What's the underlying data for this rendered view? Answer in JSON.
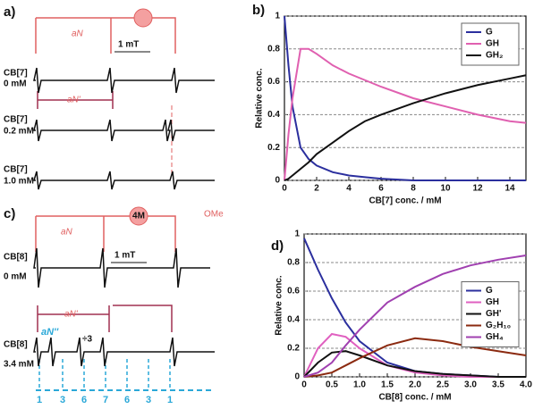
{
  "chart_data": [
    {
      "type": "line",
      "panel": "b)",
      "xlabel": "CB[7] conc. / mM",
      "ylabel": "Relative conc.",
      "x": [
        0,
        0.25,
        0.5,
        1,
        1.5,
        2,
        3,
        4,
        5,
        6,
        8,
        10,
        12,
        14,
        15
      ],
      "series": [
        {
          "name": "G",
          "color": "#2b2f9e",
          "values": [
            1,
            0.7,
            0.45,
            0.2,
            0.13,
            0.09,
            0.05,
            0.03,
            0.02,
            0.01,
            0,
            0,
            0,
            0,
            0
          ]
        },
        {
          "name": "GH",
          "color": "#e060b0",
          "values": [
            0,
            0.28,
            0.5,
            0.8,
            0.8,
            0.77,
            0.7,
            0.65,
            0.61,
            0.57,
            0.5,
            0.45,
            0.4,
            0.36,
            0.35
          ]
        },
        {
          "name": "GH₂",
          "color": "#111111",
          "values": [
            0,
            0.01,
            0.03,
            0.07,
            0.11,
            0.16,
            0.23,
            0.3,
            0.36,
            0.4,
            0.47,
            0.53,
            0.58,
            0.62,
            0.64
          ]
        }
      ],
      "xlim": [
        0,
        15
      ],
      "xticks": [
        0,
        2,
        4,
        6,
        8,
        10,
        12,
        14
      ],
      "ylim": [
        0,
        1
      ],
      "yticks": [
        0,
        0.2,
        0.4,
        0.6,
        0.8,
        1
      ],
      "grid": true,
      "legend": "upper right"
    },
    {
      "type": "line",
      "panel": "d)",
      "xlabel": "CB[8] conc. / mM",
      "ylabel": "Relative conc.",
      "x": [
        0,
        0.25,
        0.5,
        0.75,
        1,
        1.5,
        2,
        2.5,
        3,
        3.5,
        4
      ],
      "series": [
        {
          "name": "G",
          "color": "#2b2f9e",
          "values": [
            0.97,
            0.75,
            0.55,
            0.38,
            0.25,
            0.1,
            0.04,
            0.02,
            0.01,
            0,
            0
          ]
        },
        {
          "name": "GH",
          "color": "#e060c0",
          "values": [
            0,
            0.2,
            0.3,
            0.28,
            0.2,
            0.08,
            0.03,
            0.01,
            0,
            0,
            0
          ]
        },
        {
          "name": "GH'",
          "color": "#111111",
          "values": [
            0,
            0.1,
            0.17,
            0.18,
            0.15,
            0.08,
            0.04,
            0.02,
            0.01,
            0,
            0
          ]
        },
        {
          "name": "G₂H₁₀",
          "color": "#8b2a10",
          "values": [
            0,
            0.01,
            0.03,
            0.08,
            0.13,
            0.22,
            0.27,
            0.25,
            0.21,
            0.18,
            0.15
          ]
        },
        {
          "name": "GH₄",
          "color": "#a040b0",
          "values": [
            0,
            0.03,
            0.1,
            0.22,
            0.33,
            0.52,
            0.63,
            0.72,
            0.78,
            0.82,
            0.85
          ]
        }
      ],
      "xlim": [
        0,
        4
      ],
      "xticks": [
        0,
        0.5,
        {
          "value": 1,
          "label": "1.0"
        },
        1.5,
        {
          "value": 2,
          "label": "2.0"
        },
        2.5,
        {
          "value": 3,
          "label": "3.0"
        },
        3.5,
        {
          "value": 4,
          "label": "4.0"
        }
      ],
      "ylim": [
        0,
        1
      ],
      "yticks": [
        0,
        0.2,
        0.4,
        0.6,
        0.8,
        1
      ],
      "grid": true,
      "legend": "center right"
    }
  ],
  "panels": {
    "a": {
      "label": "a)",
      "aN": "aN",
      "aN2": "aN'",
      "scale": "1 mT",
      "traces": [
        {
          "host": "CB[7]",
          "conc": "0 mM"
        },
        {
          "host": "CB[7]",
          "conc": "0.2 mM"
        },
        {
          "host": "CB[7]",
          "conc": "1.0 mM"
        }
      ]
    },
    "c": {
      "label": "c)",
      "aN": "aN",
      "aN2": "aN'",
      "scale": "1 mT",
      "badge": "4M",
      "group": "OMe",
      "div": "÷3",
      "small": "aN''",
      "traces": [
        {
          "host": "CB[8]",
          "conc": "0 mM"
        },
        {
          "host": "CB[8]",
          "conc": "3.4 mM"
        }
      ],
      "pattern": [
        "1",
        "3",
        "6",
        "7",
        "6",
        "3",
        "1"
      ]
    }
  }
}
